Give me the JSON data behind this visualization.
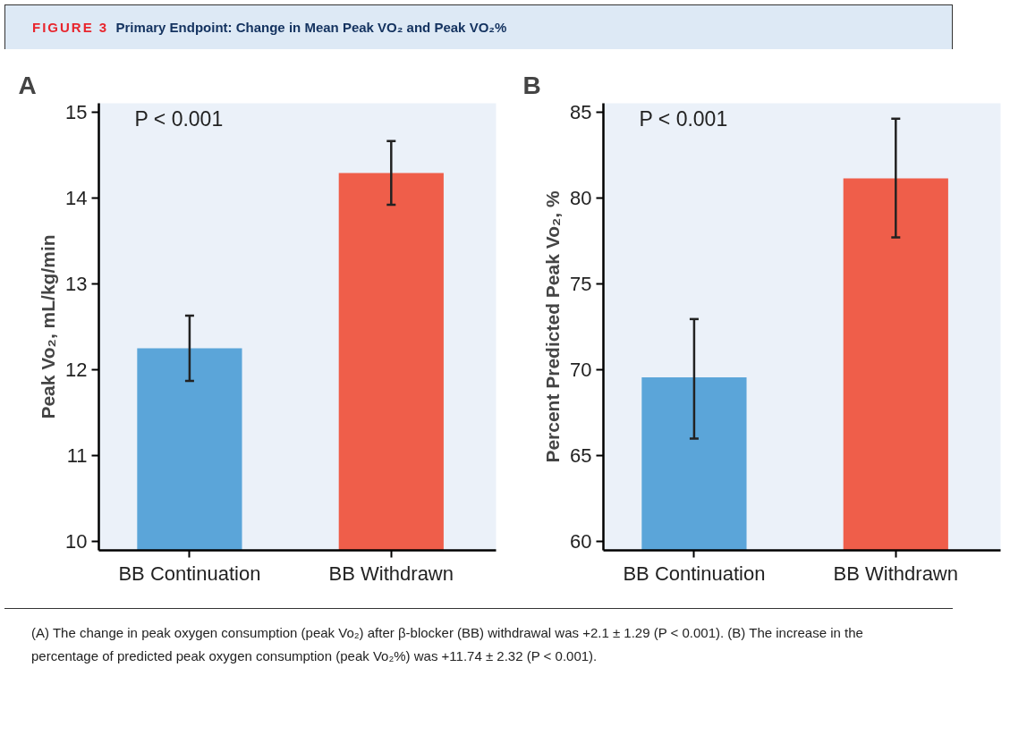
{
  "chart_data": [
    {
      "type": "other",
      "title": "FIGURE 3",
      "subtitle": "Primary Endpoint: Change in Mean Peak VO₂ and Peak VO₂%",
      "annotations": [
        "(A) The change in peak oxygen consumption (peak Vo₂) after β-blocker (BB) withdrawal was +2.1 ± 1.29 (P < 0.001). (B) The increase in the percentage of predicted peak oxygen consumption (peak Vo₂%) was +11.74 ± 2.32 (P < 0.001)."
      ]
    },
    {
      "type": "bar",
      "title": "A",
      "ylabel": "Peak Vo₂, mL/kg/min",
      "categories": [
        "BB Continuation",
        "BB Withdrawn"
      ],
      "values": [
        12.25,
        14.29
      ],
      "colors": [
        "#5ba5d9",
        "#ef5e4a"
      ],
      "errors": [
        [
          11.87,
          12.63
        ],
        [
          13.92,
          14.66
        ]
      ],
      "ylim": [
        9.9,
        15.1
      ],
      "yticks": [
        10,
        11,
        12,
        13,
        14,
        15
      ],
      "grid": false,
      "annotations": [
        "P < 0.001"
      ]
    },
    {
      "type": "bar",
      "title": "B",
      "ylabel": "Percent Predicted Peak Vo₂, %",
      "categories": [
        "BB Continuation",
        "BB Withdrawn"
      ],
      "values": [
        69.56,
        81.13
      ],
      "colors": [
        "#5ba5d9",
        "#ef5e4a"
      ],
      "errors": [
        [
          66.0,
          72.95
        ],
        [
          77.7,
          84.6
        ]
      ],
      "ylim": [
        59.5,
        85.5
      ],
      "yticks": [
        60,
        65,
        70,
        75,
        80,
        85
      ],
      "grid": false,
      "annotations": [
        "P < 0.001"
      ]
    }
  ]
}
